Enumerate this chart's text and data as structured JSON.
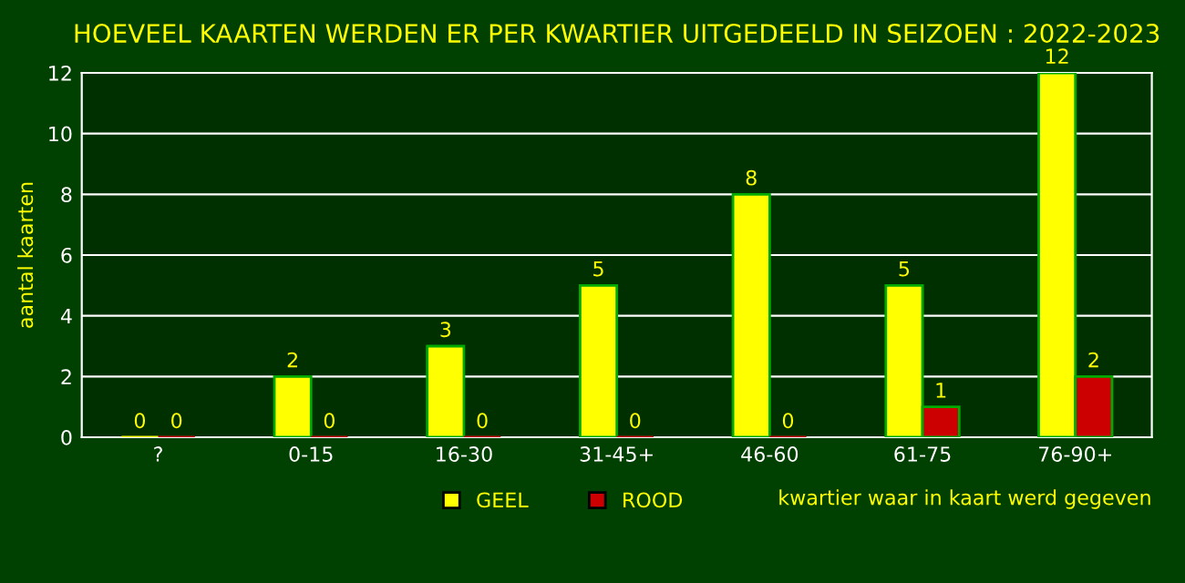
{
  "chart_data": {
    "type": "bar",
    "title": "HOEVEEL KAARTEN WERDEN ER PER KWARTIER UITGEDEELD IN SEIZOEN : 2022-2023",
    "xlabel": "kwartier waar in kaart werd gegeven",
    "ylabel": "aantal kaarten",
    "categories": [
      "?",
      "0-15",
      "16-30",
      "31-45+",
      "46-60",
      "61-75",
      "76-90+"
    ],
    "series": [
      {
        "name": "GEEL",
        "color": "#ffff00",
        "values": [
          0,
          2,
          3,
          5,
          8,
          5,
          12
        ]
      },
      {
        "name": "ROOD",
        "color": "#cc0000",
        "values": [
          0,
          0,
          0,
          0,
          0,
          1,
          2
        ]
      }
    ],
    "ylim": [
      0,
      12
    ],
    "yticks": [
      0,
      2,
      4,
      6,
      8,
      10,
      12
    ],
    "grid": "y",
    "legend": "bottom",
    "data_labels": true
  }
}
